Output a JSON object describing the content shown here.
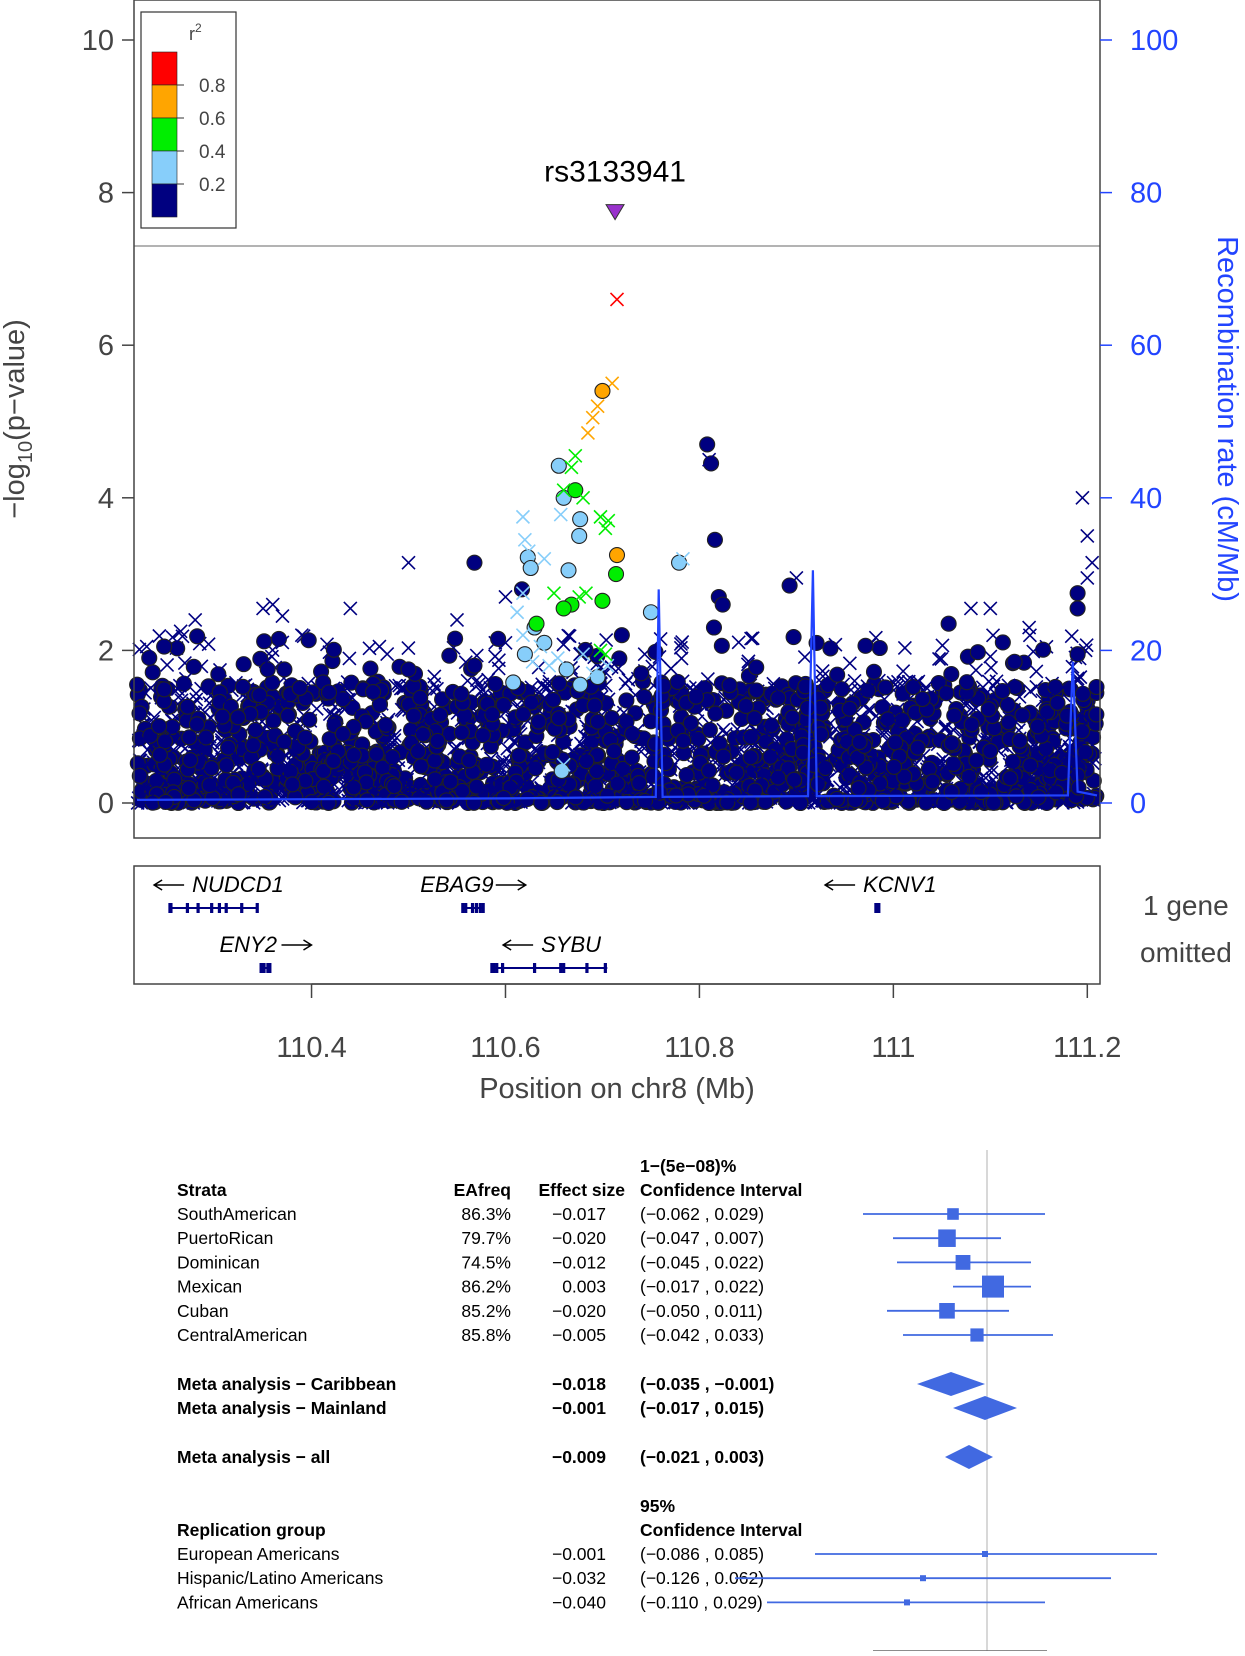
{
  "chart_data": [
    {
      "type": "scatter",
      "title": "",
      "ylabel_prefix": "−log",
      "ylabel_sub": "10",
      "ylabel_suffix": "(p−value)",
      "ylabel2": "Recombination rate (cM/Mb)",
      "xlabel": "Position on chr8 (Mb)",
      "xlim": [
        110.22,
        111.21
      ],
      "ylim": [
        0,
        10.3
      ],
      "y2lim": [
        0,
        103
      ],
      "y_ticks": [
        "0",
        "2",
        "4",
        "6",
        "8",
        "10"
      ],
      "y2_ticks": [
        "0",
        "20",
        "40",
        "60",
        "80",
        "100"
      ],
      "x_ticks": [
        "110.4",
        "110.6",
        "110.8",
        "111",
        "111.2"
      ],
      "significance_line": 7.3,
      "lead_snp": {
        "label": "rs3133941",
        "x": 110.713,
        "y": 7.75
      },
      "legend": {
        "title": "r",
        "title_sup": "2",
        "levels": [
          "0.8",
          "0.6",
          "0.4",
          "0.2"
        ]
      },
      "colors": {
        "red": "#ff0000",
        "orange": "#ffa500",
        "green": "#00ee00",
        "lightblue": "#87cefa",
        "navy": "#000080",
        "recomb": "#2244ff",
        "lead": "#9932cc"
      },
      "highlighted_points": [
        {
          "x": 110.715,
          "y": 6.6,
          "shape": "x",
          "color": "red"
        },
        {
          "x": 110.71,
          "y": 5.5,
          "shape": "x",
          "color": "orange"
        },
        {
          "x": 110.7,
          "y": 5.4,
          "shape": "o",
          "color": "orange"
        },
        {
          "x": 110.695,
          "y": 5.2,
          "shape": "x",
          "color": "orange"
        },
        {
          "x": 110.69,
          "y": 5.05,
          "shape": "x",
          "color": "orange"
        },
        {
          "x": 110.685,
          "y": 4.85,
          "shape": "x",
          "color": "orange"
        },
        {
          "x": 110.715,
          "y": 3.25,
          "shape": "o",
          "color": "orange"
        },
        {
          "x": 110.672,
          "y": 4.55,
          "shape": "x",
          "color": "green"
        },
        {
          "x": 110.668,
          "y": 4.4,
          "shape": "x",
          "color": "green"
        },
        {
          "x": 110.672,
          "y": 4.1,
          "shape": "o",
          "color": "green"
        },
        {
          "x": 110.66,
          "y": 4.1,
          "shape": "x",
          "color": "green"
        },
        {
          "x": 110.68,
          "y": 4.0,
          "shape": "x",
          "color": "green"
        },
        {
          "x": 110.698,
          "y": 3.75,
          "shape": "x",
          "color": "green"
        },
        {
          "x": 110.706,
          "y": 3.7,
          "shape": "x",
          "color": "green"
        },
        {
          "x": 110.703,
          "y": 3.6,
          "shape": "x",
          "color": "green"
        },
        {
          "x": 110.714,
          "y": 3.0,
          "shape": "o",
          "color": "green"
        },
        {
          "x": 110.7,
          "y": 2.65,
          "shape": "o",
          "color": "green"
        },
        {
          "x": 110.668,
          "y": 2.6,
          "shape": "o",
          "color": "green"
        },
        {
          "x": 110.66,
          "y": 2.55,
          "shape": "o",
          "color": "green"
        },
        {
          "x": 110.676,
          "y": 2.7,
          "shape": "x",
          "color": "green"
        },
        {
          "x": 110.683,
          "y": 2.75,
          "shape": "x",
          "color": "green"
        },
        {
          "x": 110.65,
          "y": 2.75,
          "shape": "x",
          "color": "green"
        },
        {
          "x": 110.632,
          "y": 2.35,
          "shape": "o",
          "color": "green"
        },
        {
          "x": 110.698,
          "y": 2.0,
          "shape": "x",
          "color": "green"
        },
        {
          "x": 110.703,
          "y": 1.95,
          "shape": "x",
          "color": "green"
        },
        {
          "x": 110.655,
          "y": 4.42,
          "shape": "o",
          "color": "lightblue"
        },
        {
          "x": 110.66,
          "y": 4.0,
          "shape": "o",
          "color": "lightblue"
        },
        {
          "x": 110.677,
          "y": 3.72,
          "shape": "o",
          "color": "lightblue"
        },
        {
          "x": 110.676,
          "y": 3.5,
          "shape": "o",
          "color": "lightblue"
        },
        {
          "x": 110.623,
          "y": 3.22,
          "shape": "o",
          "color": "lightblue"
        },
        {
          "x": 110.626,
          "y": 3.08,
          "shape": "o",
          "color": "lightblue"
        },
        {
          "x": 110.665,
          "y": 3.05,
          "shape": "o",
          "color": "lightblue"
        },
        {
          "x": 110.779,
          "y": 3.15,
          "shape": "o",
          "color": "lightblue"
        },
        {
          "x": 110.75,
          "y": 2.5,
          "shape": "o",
          "color": "lightblue"
        },
        {
          "x": 110.63,
          "y": 2.3,
          "shape": "o",
          "color": "lightblue"
        },
        {
          "x": 110.64,
          "y": 2.1,
          "shape": "o",
          "color": "lightblue"
        },
        {
          "x": 110.62,
          "y": 1.95,
          "shape": "o",
          "color": "lightblue"
        },
        {
          "x": 110.608,
          "y": 1.58,
          "shape": "o",
          "color": "lightblue"
        },
        {
          "x": 110.663,
          "y": 1.75,
          "shape": "o",
          "color": "lightblue"
        },
        {
          "x": 110.677,
          "y": 1.55,
          "shape": "o",
          "color": "lightblue"
        },
        {
          "x": 110.695,
          "y": 1.65,
          "shape": "o",
          "color": "lightblue"
        },
        {
          "x": 110.658,
          "y": 0.42,
          "shape": "o",
          "color": "lightblue"
        },
        {
          "x": 110.618,
          "y": 3.75,
          "shape": "x",
          "color": "lightblue"
        },
        {
          "x": 110.657,
          "y": 3.78,
          "shape": "x",
          "color": "lightblue"
        },
        {
          "x": 110.62,
          "y": 3.45,
          "shape": "x",
          "color": "lightblue"
        },
        {
          "x": 110.624,
          "y": 3.3,
          "shape": "x",
          "color": "lightblue"
        },
        {
          "x": 110.64,
          "y": 3.2,
          "shape": "x",
          "color": "lightblue"
        },
        {
          "x": 110.783,
          "y": 3.2,
          "shape": "x",
          "color": "lightblue"
        },
        {
          "x": 110.618,
          "y": 2.75,
          "shape": "x",
          "color": "lightblue"
        },
        {
          "x": 110.612,
          "y": 2.5,
          "shape": "x",
          "color": "lightblue"
        },
        {
          "x": 110.618,
          "y": 2.2,
          "shape": "x",
          "color": "lightblue"
        },
        {
          "x": 110.636,
          "y": 2.05,
          "shape": "x",
          "color": "lightblue"
        },
        {
          "x": 110.628,
          "y": 1.85,
          "shape": "x",
          "color": "lightblue"
        },
        {
          "x": 110.645,
          "y": 1.8,
          "shape": "x",
          "color": "lightblue"
        },
        {
          "x": 110.654,
          "y": 1.9,
          "shape": "x",
          "color": "lightblue"
        },
        {
          "x": 110.68,
          "y": 1.95,
          "shape": "x",
          "color": "lightblue"
        },
        {
          "x": 110.69,
          "y": 1.7,
          "shape": "x",
          "color": "lightblue"
        },
        {
          "x": 110.705,
          "y": 1.8,
          "shape": "x",
          "color": "lightblue"
        },
        {
          "x": 110.66,
          "y": 0.5,
          "shape": "x",
          "color": "lightblue"
        }
      ],
      "navy_points": [
        {
          "x": 110.248,
          "y": 2.05,
          "shape": "o"
        },
        {
          "x": 110.33,
          "y": 1.82,
          "shape": "o"
        },
        {
          "x": 110.372,
          "y": 1.75,
          "shape": "o"
        },
        {
          "x": 110.412,
          "y": 1.58,
          "shape": "o"
        },
        {
          "x": 110.418,
          "y": 1.45,
          "shape": "o"
        },
        {
          "x": 110.5,
          "y": 1.75,
          "shape": "o"
        },
        {
          "x": 110.568,
          "y": 3.15,
          "shape": "o"
        },
        {
          "x": 110.568,
          "y": 1.8,
          "shape": "o"
        },
        {
          "x": 110.617,
          "y": 2.8,
          "shape": "o"
        },
        {
          "x": 110.808,
          "y": 4.7,
          "shape": "o"
        },
        {
          "x": 110.812,
          "y": 4.45,
          "shape": "o"
        },
        {
          "x": 110.816,
          "y": 3.45,
          "shape": "o"
        },
        {
          "x": 110.82,
          "y": 2.7,
          "shape": "o"
        },
        {
          "x": 110.824,
          "y": 2.6,
          "shape": "o"
        },
        {
          "x": 110.815,
          "y": 2.3,
          "shape": "o"
        },
        {
          "x": 110.893,
          "y": 2.85,
          "shape": "o"
        },
        {
          "x": 110.98,
          "y": 1.72,
          "shape": "o"
        },
        {
          "x": 111.057,
          "y": 2.35,
          "shape": "o"
        },
        {
          "x": 111.125,
          "y": 1.85,
          "shape": "o"
        },
        {
          "x": 111.19,
          "y": 2.75,
          "shape": "o"
        },
        {
          "x": 111.19,
          "y": 2.55,
          "shape": "o"
        },
        {
          "x": 111.19,
          "y": 1.95,
          "shape": "o"
        },
        {
          "x": 110.72,
          "y": 2.2,
          "shape": "o"
        },
        {
          "x": 110.74,
          "y": 1.7,
          "shape": "o"
        },
        {
          "x": 110.5,
          "y": 3.15,
          "shape": "x"
        },
        {
          "x": 110.28,
          "y": 2.4,
          "shape": "x"
        },
        {
          "x": 110.35,
          "y": 2.55,
          "shape": "x"
        },
        {
          "x": 110.36,
          "y": 2.6,
          "shape": "x"
        },
        {
          "x": 110.37,
          "y": 2.45,
          "shape": "x"
        },
        {
          "x": 110.39,
          "y": 2.2,
          "shape": "x"
        },
        {
          "x": 110.44,
          "y": 2.55,
          "shape": "x"
        },
        {
          "x": 110.47,
          "y": 2.05,
          "shape": "x"
        },
        {
          "x": 110.55,
          "y": 2.4,
          "shape": "x"
        },
        {
          "x": 110.6,
          "y": 2.1,
          "shape": "x"
        },
        {
          "x": 110.81,
          "y": 4.5,
          "shape": "x"
        },
        {
          "x": 110.9,
          "y": 2.95,
          "shape": "x"
        },
        {
          "x": 110.96,
          "y": 1.6,
          "shape": "x"
        },
        {
          "x": 111.08,
          "y": 2.55,
          "shape": "x"
        },
        {
          "x": 111.1,
          "y": 2.55,
          "shape": "x"
        },
        {
          "x": 111.14,
          "y": 2.3,
          "shape": "x"
        },
        {
          "x": 111.195,
          "y": 4.0,
          "shape": "x"
        },
        {
          "x": 111.2,
          "y": 3.5,
          "shape": "x"
        },
        {
          "x": 111.205,
          "y": 3.15,
          "shape": "x"
        },
        {
          "x": 111.2,
          "y": 2.95,
          "shape": "x"
        },
        {
          "x": 110.23,
          "y": 2.05,
          "shape": "x"
        },
        {
          "x": 110.265,
          "y": 2.25,
          "shape": "x"
        },
        {
          "x": 110.6,
          "y": 2.7,
          "shape": "x"
        },
        {
          "x": 110.76,
          "y": 2.15,
          "shape": "x"
        }
      ],
      "recombination": [
        [
          110.22,
          0.4
        ],
        [
          110.4,
          0.5
        ],
        [
          110.6,
          0.6
        ],
        [
          110.755,
          0.8
        ],
        [
          110.758,
          28
        ],
        [
          110.762,
          0.8
        ],
        [
          110.912,
          0.9
        ],
        [
          110.917,
          30.5
        ],
        [
          110.921,
          0.9
        ],
        [
          111.18,
          1.0
        ],
        [
          111.185,
          18.5
        ],
        [
          111.19,
          1.5
        ],
        [
          111.21,
          1.0
        ]
      ],
      "genes_panel": {
        "genes": [
          {
            "name": "NUDCD1",
            "label_side": "arrow-left",
            "start": 110.253,
            "end": 110.345,
            "exons": [
              110.254,
              110.255,
              110.272,
              110.283,
              110.297,
              110.305,
              110.312,
              110.328,
              110.344
            ],
            "row": 0
          },
          {
            "name": "ENY2",
            "label_side": "arrow-right",
            "start": 110.347,
            "end": 110.358,
            "exons": [
              110.348,
              110.351,
              110.355,
              110.357
            ],
            "row": 1
          },
          {
            "name": "EBAG9",
            "label_side": "arrow-right",
            "start": 110.555,
            "end": 110.578,
            "exons": [
              110.556,
              110.559,
              110.566,
              110.57,
              110.574,
              110.577
            ],
            "row": 0
          },
          {
            "name": "SYBU",
            "label_side": "arrow-left",
            "start": 110.585,
            "end": 110.705,
            "exons": [
              110.586,
              110.588,
              110.591,
              110.597,
              110.63,
              110.657,
              110.66,
              110.684,
              110.703
            ],
            "row": 1
          },
          {
            "name": "KCNV1",
            "label_side": "arrow-left",
            "start": 110.982,
            "end": 110.986,
            "exons": [
              110.982,
              110.985
            ],
            "row": 0
          }
        ],
        "note_line1": "1 gene",
        "note_line2": "omitted"
      }
    },
    {
      "type": "forest",
      "headers": {
        "strata": "Strata",
        "eafreq": "EAfreq",
        "effect": "Effect size",
        "ci_line1": "1−(5e−08)%",
        "ci_line2": "Confidence Interval"
      },
      "rows": [
        {
          "label": "SouthAmerican",
          "eafreq": "86.3%",
          "effect_text": "−0.017",
          "ci_text": "(−0.062 , 0.029)",
          "est": -0.017,
          "lo": -0.062,
          "hi": 0.029,
          "weight": 0.35
        },
        {
          "label": "PuertoRican",
          "eafreq": "79.7%",
          "effect_text": "−0.020",
          "ci_text": "(−0.047 , 0.007)",
          "est": -0.02,
          "lo": -0.047,
          "hi": 0.007,
          "weight": 0.72
        },
        {
          "label": "Dominican",
          "eafreq": "74.5%",
          "effect_text": "−0.012",
          "ci_text": "(−0.045 , 0.022)",
          "est": -0.012,
          "lo": -0.045,
          "hi": 0.022,
          "weight": 0.55
        },
        {
          "label": "Mexican",
          "eafreq": "86.2%",
          "effect_text": "0.003",
          "ci_text": "(−0.017 , 0.022)",
          "est": 0.003,
          "lo": -0.017,
          "hi": 0.022,
          "weight": 1.0
        },
        {
          "label": "Cuban",
          "eafreq": "85.2%",
          "effect_text": "−0.020",
          "ci_text": "(−0.050 , 0.011)",
          "est": -0.02,
          "lo": -0.05,
          "hi": 0.011,
          "weight": 0.6
        },
        {
          "label": "CentralAmerican",
          "eafreq": "85.8%",
          "effect_text": "−0.005",
          "ci_text": "(−0.042 , 0.033)",
          "est": -0.005,
          "lo": -0.042,
          "hi": 0.033,
          "weight": 0.45
        }
      ],
      "meta": [
        {
          "label": "Meta analysis − Caribbean",
          "effect_text": "−0.018",
          "ci_text": "(−0.035 , −0.001)",
          "est": -0.018,
          "lo": -0.035,
          "hi": -0.001
        },
        {
          "label": "Meta analysis − Mainland",
          "effect_text": "−0.001",
          "ci_text": "(−0.017 , 0.015)",
          "est": -0.001,
          "lo": -0.017,
          "hi": 0.015
        },
        {
          "label": "Meta analysis − all",
          "effect_text": "−0.009",
          "ci_text": "(−0.021 , 0.003)",
          "est": -0.009,
          "lo": -0.021,
          "hi": 0.003
        }
      ],
      "replication_headers": {
        "group": "Replication group",
        "ci_line1": "95%",
        "ci_line2": "Confidence Interval"
      },
      "replication": [
        {
          "label": "European Americans",
          "effect_text": "−0.001",
          "ci_text": "(−0.086 , 0.085)",
          "est": -0.001,
          "lo": -0.086,
          "hi": 0.085
        },
        {
          "label": "Hispanic/Latino Americans",
          "effect_text": "−0.032",
          "ci_text": "(−0.126 , 0.062)",
          "est": -0.032,
          "lo": -0.126,
          "hi": 0.062
        },
        {
          "label": "African Americans",
          "effect_text": "−0.040",
          "ci_text": "(−0.110 , 0.029)",
          "est": -0.04,
          "lo": -0.11,
          "hi": 0.029
        }
      ]
    }
  ]
}
